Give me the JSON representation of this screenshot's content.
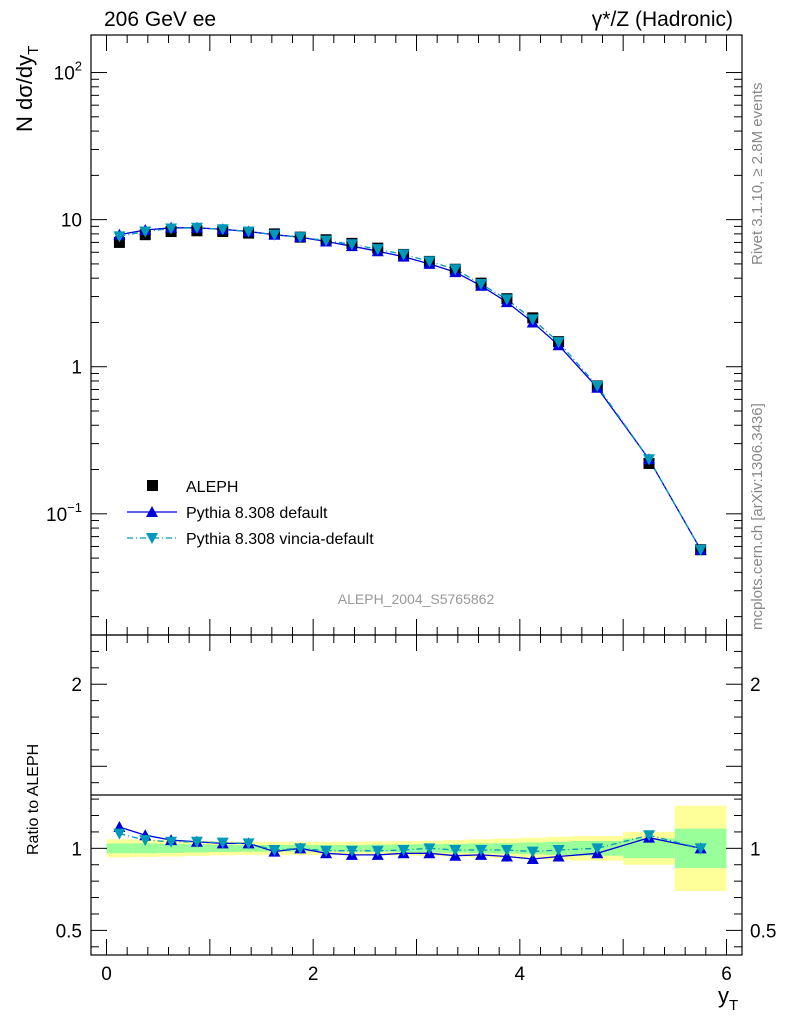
{
  "header": {
    "left": "206 GeV ee",
    "right": "γ*/Z (Hadronic)"
  },
  "side_text": {
    "rivet": "Rivet 3.1.10, ≥ 2.8M events",
    "mcplots": "mcplots.cern.ch [arXiv:1306.3436]"
  },
  "analysis_id": "ALEPH_2004_S5765862",
  "colors": {
    "data": "#000000",
    "pythia_default": "#0000dd",
    "vincia": "#0099bb",
    "band_inner": "#99ff99",
    "band_outer": "#ffff99"
  },
  "chart_data": [
    {
      "type": "scatter",
      "panel": "main",
      "ylabel": "N dσ/dy_T",
      "yscale": "log",
      "ylim": [
        0.015,
        180
      ],
      "xlim": [
        -0.15,
        6.15
      ],
      "ytick_labels": [
        "10^-1",
        "1",
        "10",
        "10^2"
      ],
      "legend_position": "lower-left",
      "x": [
        0.125,
        0.375,
        0.625,
        0.875,
        1.125,
        1.375,
        1.625,
        1.875,
        2.125,
        2.375,
        2.625,
        2.875,
        3.125,
        3.375,
        3.625,
        3.875,
        4.125,
        4.375,
        4.75,
        5.25,
        5.75
      ],
      "series": [
        {
          "name": "ALEPH",
          "marker": "square",
          "values": [
            7.0,
            7.9,
            8.3,
            8.4,
            8.3,
            8.1,
            8.0,
            7.6,
            7.3,
            6.9,
            6.4,
            5.8,
            5.2,
            4.6,
            3.7,
            2.9,
            2.15,
            1.48,
            0.74,
            0.22,
            0.057
          ]
        },
        {
          "name": "Pythia 8.308 default",
          "marker": "triangle-up",
          "values": [
            7.9,
            8.5,
            8.8,
            8.8,
            8.6,
            8.3,
            7.9,
            7.6,
            7.1,
            6.6,
            6.1,
            5.6,
            5.0,
            4.4,
            3.55,
            2.75,
            2.0,
            1.4,
            0.72,
            0.235,
            0.057
          ]
        },
        {
          "name": "Pythia 8.308 vincia-default",
          "marker": "triangle-down",
          "values": [
            7.7,
            8.3,
            8.7,
            8.8,
            8.6,
            8.3,
            7.9,
            7.6,
            7.2,
            6.8,
            6.3,
            5.8,
            5.2,
            4.6,
            3.65,
            2.87,
            2.1,
            1.47,
            0.74,
            0.235,
            0.057
          ]
        }
      ]
    },
    {
      "type": "line",
      "panel": "ratio",
      "ylabel": "Ratio to ALEPH",
      "xlabel": "y_T",
      "ylim": [
        0.35,
        2.3
      ],
      "xlim": [
        -0.15,
        6.15
      ],
      "ytick_labels": [
        "0.5",
        "1",
        "2"
      ],
      "xtick_labels": [
        "0",
        "2",
        "4",
        "6"
      ],
      "bins": [
        [
          0,
          0.25
        ],
        [
          0.25,
          0.5
        ],
        [
          0.5,
          0.75
        ],
        [
          0.75,
          1.0
        ],
        [
          1.0,
          1.25
        ],
        [
          1.25,
          1.5
        ],
        [
          1.5,
          1.75
        ],
        [
          1.75,
          2.0
        ],
        [
          2.0,
          2.25
        ],
        [
          2.25,
          2.5
        ],
        [
          2.5,
          2.75
        ],
        [
          2.75,
          3.0
        ],
        [
          3.0,
          3.25
        ],
        [
          3.25,
          3.5
        ],
        [
          3.5,
          3.75
        ],
        [
          3.75,
          4.0
        ],
        [
          4.0,
          4.25
        ],
        [
          4.25,
          4.5
        ],
        [
          4.5,
          5.0
        ],
        [
          5.0,
          5.5
        ],
        [
          5.5,
          6.0
        ]
      ],
      "band_inner": [
        0.03,
        0.03,
        0.028,
        0.025,
        0.022,
        0.02,
        0.02,
        0.02,
        0.02,
        0.02,
        0.022,
        0.024,
        0.025,
        0.027,
        0.03,
        0.032,
        0.036,
        0.04,
        0.045,
        0.06,
        0.12
      ],
      "band_outer": [
        0.055,
        0.053,
        0.05,
        0.046,
        0.042,
        0.04,
        0.04,
        0.04,
        0.04,
        0.04,
        0.042,
        0.044,
        0.046,
        0.05,
        0.055,
        0.06,
        0.065,
        0.07,
        0.075,
        0.1,
        0.26
      ],
      "series": [
        {
          "name": "Pythia 8.308 default",
          "values": [
            1.13,
            1.08,
            1.05,
            1.04,
            1.03,
            1.03,
            0.98,
            1.0,
            0.97,
            0.96,
            0.96,
            0.97,
            0.97,
            0.955,
            0.96,
            0.95,
            0.935,
            0.95,
            0.97,
            1.065,
            1.0
          ]
        },
        {
          "name": "Pythia 8.308 vincia-default",
          "values": [
            1.09,
            1.05,
            1.04,
            1.04,
            1.035,
            1.03,
            0.99,
            1.0,
            0.985,
            0.985,
            0.985,
            0.99,
            1.0,
            0.99,
            0.99,
            0.99,
            0.98,
            0.99,
            1.0,
            1.08,
            1.0
          ]
        }
      ]
    }
  ]
}
